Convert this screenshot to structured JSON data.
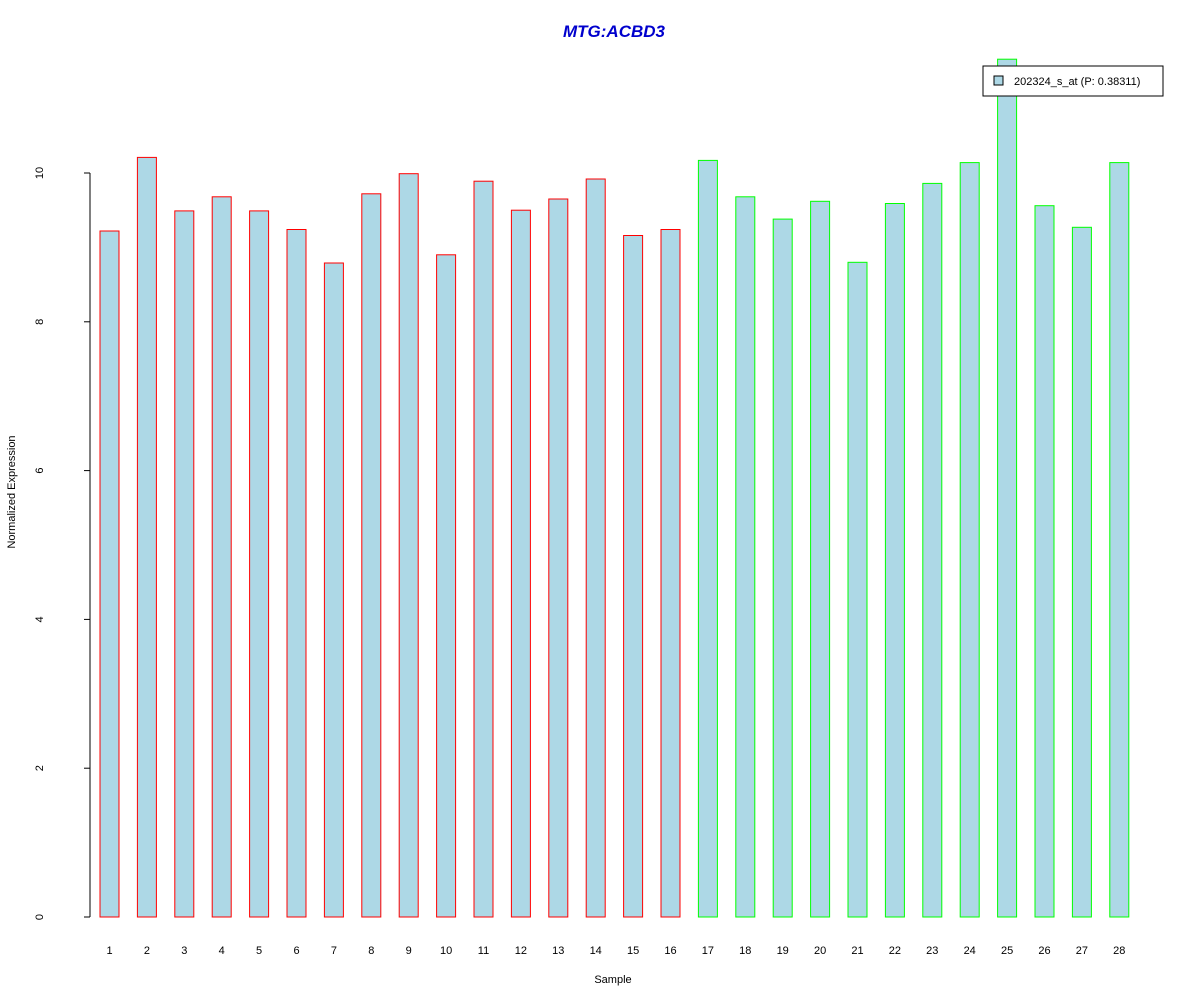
{
  "chart_data": {
    "type": "bar",
    "title": "MTG:ACBD3",
    "xlabel": "Sample",
    "ylabel": "Normalized Expression",
    "categories": [
      "1",
      "2",
      "3",
      "4",
      "5",
      "6",
      "7",
      "8",
      "9",
      "10",
      "11",
      "12",
      "13",
      "14",
      "15",
      "16",
      "17",
      "18",
      "19",
      "20",
      "21",
      "22",
      "23",
      "24",
      "25",
      "26",
      "27",
      "28"
    ],
    "series": [
      {
        "name": "202324_s_at (P: 0.38311)",
        "values": [
          9.22,
          10.21,
          9.49,
          9.68,
          9.49,
          9.24,
          8.79,
          9.72,
          9.99,
          8.9,
          9.89,
          9.5,
          9.65,
          9.92,
          9.16,
          9.24,
          10.17,
          9.68,
          9.38,
          9.62,
          8.8,
          9.59,
          9.86,
          10.14,
          11.53,
          9.56,
          9.27,
          10.14
        ]
      }
    ],
    "bar_fill": "#add8e6",
    "group_border_colors": [
      "#ff0000",
      "#ff0000",
      "#ff0000",
      "#ff0000",
      "#ff0000",
      "#ff0000",
      "#ff0000",
      "#ff0000",
      "#ff0000",
      "#ff0000",
      "#ff0000",
      "#ff0000",
      "#ff0000",
      "#ff0000",
      "#ff0000",
      "#ff0000",
      "#00ff00",
      "#00ff00",
      "#00ff00",
      "#00ff00",
      "#00ff00",
      "#00ff00",
      "#00ff00",
      "#00ff00",
      "#00ff00",
      "#00ff00",
      "#00ff00",
      "#00ff00"
    ],
    "title_color": "#0000cd",
    "yticks": [
      0,
      2,
      4,
      6,
      8,
      10
    ],
    "ylim": [
      0,
      11.6
    ],
    "legend_position": "top-right",
    "grid": false
  }
}
